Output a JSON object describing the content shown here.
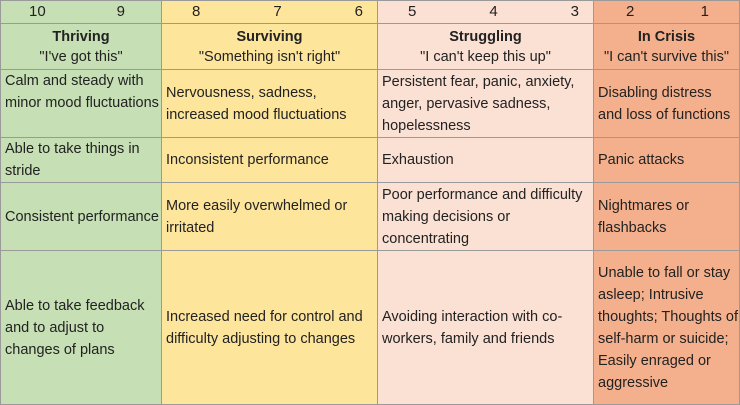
{
  "columns": [
    {
      "numbers": [
        "10",
        "9"
      ],
      "title": "Thriving",
      "quote": "\"I've got this\"",
      "color": "#c6dfb4"
    },
    {
      "numbers": [
        "8",
        "7",
        "6"
      ],
      "title": "Surviving",
      "quote": "\"Something isn't right\"",
      "color": "#fee59c"
    },
    {
      "numbers": [
        "5",
        "4",
        "3"
      ],
      "title": "Struggling",
      "quote": "\"I can't keep this up\"",
      "color": "#fbe0d4"
    },
    {
      "numbers": [
        "2",
        "1"
      ],
      "title": "In Crisis",
      "quote": "\"I can't survive this\"",
      "color": "#f4b08d"
    }
  ],
  "rows": [
    [
      "Calm and steady with minor mood fluctuations",
      "Nervousness, sadness, increased mood fluctuations",
      "Persistent fear, panic, anxiety, anger, pervasive sadness, hopelessness",
      "Disabling distress and loss of functions"
    ],
    [
      "Able to take things in stride",
      "Inconsistent performance",
      "Exhaustion",
      "Panic attacks"
    ],
    [
      "Consistent performance",
      "More easily overwhelmed or irritated",
      "Poor performance and difficulty making decisions or concentrating",
      "Nightmares or flashbacks"
    ],
    [
      "Able to take feedback and to adjust to changes of plans",
      "Increased need for control and difficulty adjusting to changes",
      "Avoiding interaction with co-workers, family and friends",
      "Unable to fall or stay asleep; Intrusive thoughts; Thoughts of self-harm or suicide; Easily enraged or aggressive"
    ]
  ]
}
